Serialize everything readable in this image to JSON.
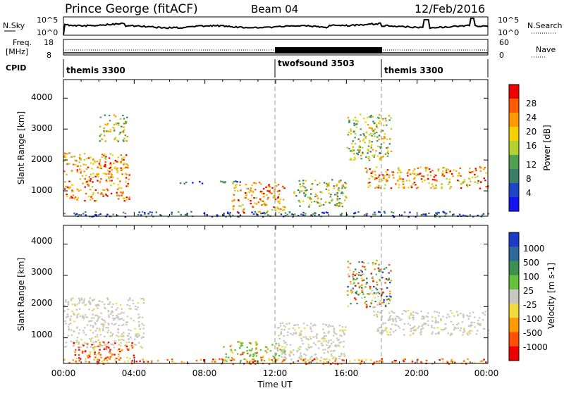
{
  "header": {
    "station": "Prince George (fitACF)",
    "beam": "Beam 04",
    "date": "12/Feb/2016"
  },
  "top_panels": {
    "nsky_label": "N.Sky",
    "nsky_ticks": [
      "10^5",
      "10^0"
    ],
    "nsearch_label": "N.Search",
    "nsearch_ticks": [
      "10^5",
      "10^0"
    ],
    "freq_label_1": "Freq.",
    "freq_label_2": "[MHz]",
    "freq_ticks": [
      "18",
      "8"
    ],
    "nave_label": "Nave",
    "nave_ticks": [
      "60",
      "0"
    ],
    "cpid_label": "CPID",
    "cpid_segments": [
      {
        "name": "themis 3300",
        "start_hour": 0,
        "end_hour": 12
      },
      {
        "name": "twofsound 3503",
        "start_hour": 12,
        "end_hour": 18
      },
      {
        "name": "themis 3300",
        "start_hour": 18,
        "end_hour": 24
      }
    ]
  },
  "power_colorbar": {
    "label": "Power [dB]",
    "ticks": [
      "28",
      "24",
      "20",
      "16",
      "12",
      "8",
      "4"
    ],
    "colors": [
      "#ee0000",
      "#ff5a00",
      "#ff9a00",
      "#f2d200",
      "#b3d232",
      "#4fa050",
      "#3c7e68",
      "#1e44c8",
      "#1414f0"
    ]
  },
  "velocity_colorbar": {
    "label": "Velocity [m s-1]",
    "ticks": [
      "1000",
      "500",
      "100",
      "25",
      "-25",
      "-100",
      "-500",
      "-1000"
    ],
    "colors": [
      "#1c3cc8",
      "#2d6a9c",
      "#3c9050",
      "#66c03a",
      "#c8c8c0",
      "#f0dc3c",
      "#ff9a00",
      "#ff5000",
      "#ee0000"
    ]
  },
  "chart_data": [
    {
      "type": "heatmap",
      "title": "Power",
      "xlabel": "Time UT",
      "ylabel": "Slant Range [km]",
      "xlim": [
        "00:00",
        "00:00"
      ],
      "ylim": [
        180,
        4600
      ],
      "x_ticks": [
        "00:00",
        "04:00",
        "08:00",
        "12:00",
        "16:00",
        "20:00",
        "00:00"
      ],
      "y_ticks": [
        "4000",
        "3000",
        "2000",
        "1000"
      ],
      "dashed_lines_hours": [
        12,
        18
      ],
      "scatter_regions": [
        {
          "t0": 0.0,
          "t1": 3.7,
          "r0": 700,
          "r1": 2250,
          "level": "high"
        },
        {
          "t0": 2.0,
          "t1": 3.6,
          "r0": 2600,
          "r1": 3500,
          "level": "mid"
        },
        {
          "t0": 6.5,
          "t1": 10.0,
          "r0": 1250,
          "r1": 1350,
          "level": "low"
        },
        {
          "t0": 9.5,
          "t1": 12.5,
          "r0": 300,
          "r1": 1300,
          "level": "high"
        },
        {
          "t0": 13.0,
          "t1": 16.0,
          "r0": 500,
          "r1": 1400,
          "level": "mid"
        },
        {
          "t0": 16.0,
          "t1": 18.5,
          "r0": 2000,
          "r1": 3500,
          "level": "mid"
        },
        {
          "t0": 17.0,
          "t1": 24.0,
          "r0": 1100,
          "r1": 1800,
          "level": "high"
        },
        {
          "t0": 0.0,
          "t1": 24.0,
          "r0": 180,
          "r1": 350,
          "level": "low"
        }
      ]
    },
    {
      "type": "heatmap",
      "title": "Velocity",
      "xlabel": "Time UT",
      "ylabel": "Slant Range [km]",
      "xlim": [
        "00:00",
        "00:00"
      ],
      "ylim": [
        180,
        4600
      ],
      "x_ticks": [
        "00:00",
        "04:00",
        "08:00",
        "12:00",
        "16:00",
        "20:00",
        "00:00"
      ],
      "y_ticks": [
        "4000",
        "3000",
        "2000",
        "1000"
      ],
      "dashed_lines_hours": [
        12,
        18
      ],
      "scatter_regions": [
        {
          "t0": 0.0,
          "t1": 4.5,
          "r0": 700,
          "r1": 2300,
          "level": "ground"
        },
        {
          "t0": 0.5,
          "t1": 4.0,
          "r0": 300,
          "r1": 900,
          "level": "away"
        },
        {
          "t0": 9.0,
          "t1": 12.5,
          "r0": 250,
          "r1": 900,
          "level": "toward"
        },
        {
          "t0": 12.0,
          "t1": 16.0,
          "r0": 300,
          "r1": 1500,
          "level": "ground"
        },
        {
          "t0": 16.0,
          "t1": 18.5,
          "r0": 2000,
          "r1": 3500,
          "level": "mixed"
        },
        {
          "t0": 17.5,
          "t1": 24.0,
          "r0": 1100,
          "r1": 1900,
          "level": "ground"
        },
        {
          "t0": 0.0,
          "t1": 24.0,
          "r0": 180,
          "r1": 350,
          "level": "away"
        }
      ]
    }
  ]
}
